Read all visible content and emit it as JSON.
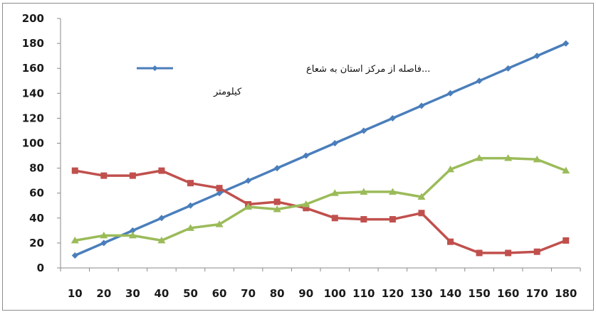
{
  "chart_data": {
    "type": "line",
    "title": "",
    "xlabel": "",
    "ylabel": "",
    "x": [
      10,
      20,
      30,
      40,
      50,
      60,
      70,
      80,
      90,
      100,
      110,
      120,
      130,
      140,
      150,
      160,
      170,
      180
    ],
    "ylim": [
      0,
      200
    ],
    "yticks": [
      0,
      20,
      40,
      60,
      80,
      100,
      120,
      140,
      160,
      180,
      200
    ],
    "grid": false,
    "legend_position": "top-center",
    "legend": {
      "entries": [
        {
          "line1": "...فاصله از مرکز استان به شعاع",
          "line2": "کیلومتر"
        }
      ]
    },
    "series": [
      {
        "name": "...فاصله از مرکز استان به شعاع کیلومتر",
        "color": "#4a7ebb",
        "marker": "diamond",
        "values": [
          10,
          20,
          30,
          40,
          50,
          60,
          70,
          80,
          90,
          100,
          110,
          120,
          130,
          140,
          150,
          160,
          170,
          180
        ]
      },
      {
        "color": "#c0504d",
        "marker": "square",
        "values": [
          78,
          74,
          74,
          78,
          68,
          64,
          51,
          53,
          48,
          40,
          39,
          39,
          44,
          21,
          12,
          12,
          13,
          22
        ]
      },
      {
        "color": "#9bbb59",
        "marker": "triangle",
        "values": [
          22,
          26,
          26,
          22,
          32,
          35,
          49,
          47,
          51,
          60,
          61,
          61,
          57,
          79,
          88,
          88,
          87,
          78
        ]
      }
    ]
  }
}
